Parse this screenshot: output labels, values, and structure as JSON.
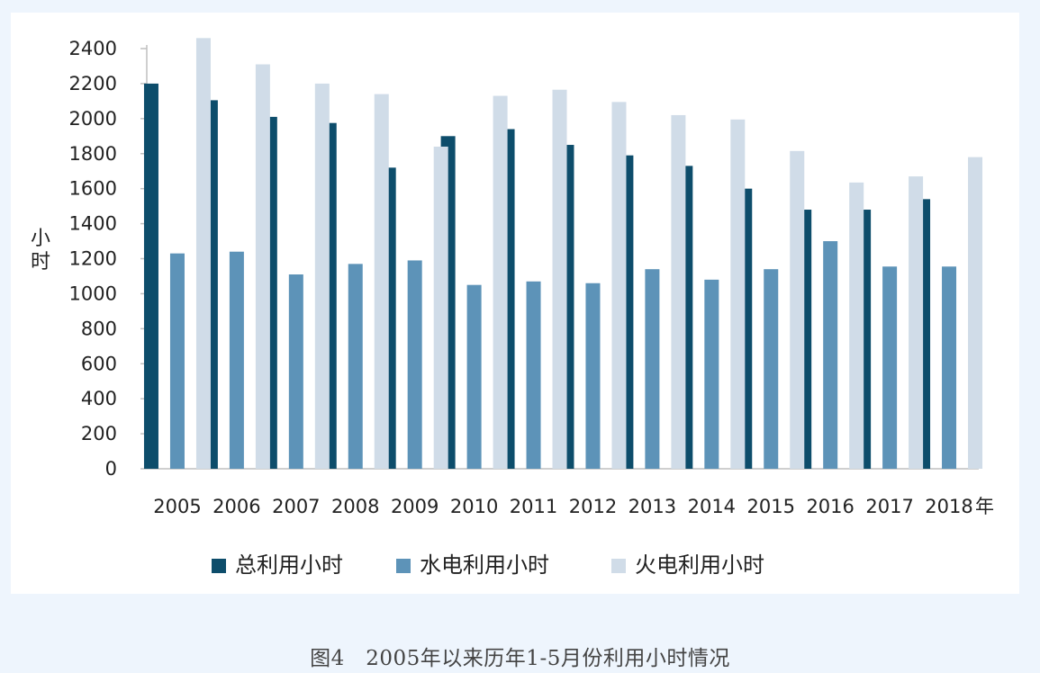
{
  "chart_data": {
    "type": "bar",
    "ylabel": "小时",
    "x_unit_suffix": "年",
    "ylim": [
      0,
      2400
    ],
    "yticks": [
      0,
      200,
      400,
      600,
      800,
      1000,
      1200,
      1400,
      1600,
      1800,
      2000,
      2200,
      2400
    ],
    "categories": [
      "2005",
      "2006",
      "2007",
      "2008",
      "2009",
      "2010",
      "2011",
      "2012",
      "2013",
      "2014",
      "2015",
      "2016",
      "2017",
      "2018"
    ],
    "series": [
      {
        "name": "总利用小时",
        "color": "#0d4d6b",
        "values": [
          2200,
          2105,
          2010,
          1975,
          1720,
          1900,
          1940,
          1850,
          1790,
          1730,
          1600,
          1480,
          1480,
          1540
        ]
      },
      {
        "name": "水电利用小时",
        "color": "#5d93b8",
        "values": [
          1230,
          1240,
          1110,
          1170,
          1190,
          1050,
          1070,
          1060,
          1140,
          1080,
          1140,
          1300,
          1155,
          1155
        ]
      },
      {
        "name": "火电利用小时",
        "color": "#d0dce8",
        "values": [
          2460,
          2310,
          2200,
          2140,
          1840,
          2130,
          2165,
          2095,
          2020,
          1995,
          1815,
          1635,
          1670,
          1780
        ]
      }
    ],
    "grid": false,
    "legend_position": "bottom"
  },
  "caption": "图4　2005年以来历年1-5月份利用小时情况"
}
